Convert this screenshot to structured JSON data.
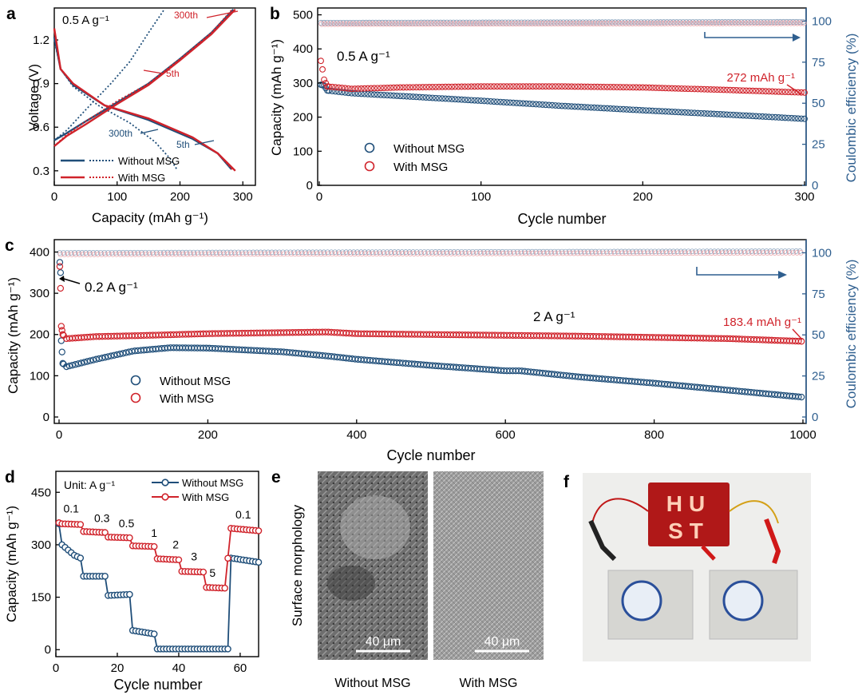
{
  "colors": {
    "blue": "#1f4e79",
    "red": "#d0232b",
    "pink": "#e8a0a6",
    "lightblue": "#8aa3bd",
    "ce_axis": "#2f5f8f",
    "photo_bg": "#eeeeec",
    "led_panel": "#b01818",
    "led_on": "#ffd0b8"
  },
  "panels": {
    "a": {
      "letter": "a",
      "title": "0.5 A g⁻¹",
      "xlabel": "Capacity (mAh g⁻¹)",
      "ylabel": "Voltage (V)",
      "xticks": [
        "0",
        "100",
        "200",
        "300"
      ],
      "yticks": [
        "0.3",
        "0.6",
        "0.9",
        "1.2"
      ],
      "annotations": [
        "300th",
        "5th",
        "300th",
        "5th"
      ],
      "legend": [
        {
          "label": "Without MSG",
          "color": "blue"
        },
        {
          "label": "With MSG",
          "color": "red"
        }
      ]
    },
    "b": {
      "letter": "b",
      "rate": "0.5 A g⁻¹",
      "xlabel": "Cycle number",
      "ylabel": "Capacity (mAh g⁻¹)",
      "ylabel_right": "Coulombic efficiency (%)",
      "xticks": [
        "0",
        "100",
        "200",
        "300"
      ],
      "yticks": [
        "0",
        "100",
        "200",
        "300",
        "400",
        "500"
      ],
      "yticks_right": [
        "0",
        "25",
        "50",
        "75",
        "100"
      ],
      "annotation": "272 mAh g⁻¹",
      "legend": [
        {
          "label": "Without MSG",
          "color": "blue"
        },
        {
          "label": "With MSG",
          "color": "red"
        }
      ]
    },
    "c": {
      "letter": "c",
      "rate_initial": "0.2 A g⁻¹",
      "rate_main": "2 A g⁻¹",
      "xlabel": "Cycle number",
      "ylabel": "Capacity (mAh g⁻¹)",
      "ylabel_right": "Coulombic efficiency (%)",
      "xticks": [
        "0",
        "200",
        "400",
        "600",
        "800",
        "1000"
      ],
      "yticks": [
        "0",
        "100",
        "200",
        "300",
        "400"
      ],
      "yticks_right": [
        "0",
        "25",
        "50",
        "75",
        "100"
      ],
      "annotation": "183.4 mAh g⁻¹",
      "legend": [
        {
          "label": "Without MSG",
          "color": "blue"
        },
        {
          "label": "With MSG",
          "color": "red"
        }
      ]
    },
    "d": {
      "letter": "d",
      "unit": "Unit: A g⁻¹",
      "xlabel": "Cycle number",
      "ylabel": "Capacity (mAh g⁻¹)",
      "xticks": [
        "0",
        "20",
        "40",
        "60"
      ],
      "yticks": [
        "0",
        "150",
        "300",
        "450"
      ],
      "rate_labels": [
        "0.1",
        "0.3",
        "0.5",
        "1",
        "2",
        "3",
        "5",
        "0.1"
      ],
      "legend": [
        {
          "label": "Without MSG",
          "color": "blue"
        },
        {
          "label": "With MSG",
          "color": "red"
        }
      ]
    },
    "e": {
      "letter": "e",
      "ylabel": "Surface morphology",
      "scale": "40 μm",
      "labels": [
        "Without MSG",
        "With MSG"
      ]
    },
    "f": {
      "letter": "f",
      "led_text": "HUST"
    }
  },
  "chart_data": [
    {
      "type": "line",
      "panel": "a",
      "title": "0.5 A g⁻¹",
      "xlabel": "Capacity (mAh g⁻¹)",
      "ylabel": "Voltage (V)",
      "xlim": [
        0,
        320
      ],
      "ylim": [
        0.2,
        1.42
      ],
      "series": [
        {
          "name": "Without MSG 5th discharge",
          "color": "blue",
          "dash": false,
          "points": [
            [
              0,
              1.22
            ],
            [
              10,
              1.0
            ],
            [
              30,
              0.89
            ],
            [
              80,
              0.75
            ],
            [
              150,
              0.65
            ],
            [
              220,
              0.52
            ],
            [
              260,
              0.42
            ],
            [
              282,
              0.31
            ]
          ]
        },
        {
          "name": "Without MSG 5th charge",
          "color": "blue",
          "dash": false,
          "points": [
            [
              0,
              0.51
            ],
            [
              20,
              0.56
            ],
            [
              50,
              0.64
            ],
            [
              100,
              0.77
            ],
            [
              150,
              0.9
            ],
            [
              200,
              1.07
            ],
            [
              250,
              1.25
            ],
            [
              285,
              1.41
            ]
          ]
        },
        {
          "name": "Without MSG 300th discharge",
          "color": "blue",
          "dash": true,
          "points": [
            [
              0,
              1.2
            ],
            [
              10,
              1.0
            ],
            [
              30,
              0.88
            ],
            [
              70,
              0.75
            ],
            [
              120,
              0.63
            ],
            [
              160,
              0.5
            ],
            [
              185,
              0.38
            ],
            [
              195,
              0.31
            ]
          ]
        },
        {
          "name": "Without MSG 300th charge",
          "color": "blue",
          "dash": true,
          "points": [
            [
              0,
              0.51
            ],
            [
              20,
              0.58
            ],
            [
              50,
              0.72
            ],
            [
              90,
              0.9
            ],
            [
              120,
              1.05
            ],
            [
              150,
              1.25
            ],
            [
              175,
              1.41
            ]
          ]
        },
        {
          "name": "With MSG 5th discharge",
          "color": "red",
          "dash": false,
          "points": [
            [
              0,
              1.28
            ],
            [
              10,
              1.0
            ],
            [
              30,
              0.9
            ],
            [
              80,
              0.75
            ],
            [
              150,
              0.66
            ],
            [
              220,
              0.53
            ],
            [
              260,
              0.42
            ],
            [
              288,
              0.3
            ]
          ]
        },
        {
          "name": "With MSG 5th charge",
          "color": "red",
          "dash": false,
          "points": [
            [
              0,
              0.47
            ],
            [
              20,
              0.54
            ],
            [
              50,
              0.62
            ],
            [
              100,
              0.76
            ],
            [
              150,
              0.89
            ],
            [
              200,
              1.06
            ],
            [
              250,
              1.24
            ],
            [
              288,
              1.41
            ]
          ]
        },
        {
          "name": "With MSG 300th discharge",
          "color": "red",
          "dash": true,
          "points": [
            [
              0,
              1.27
            ],
            [
              10,
              1.0
            ],
            [
              30,
              0.9
            ],
            [
              80,
              0.75
            ],
            [
              150,
              0.66
            ],
            [
              220,
              0.53
            ],
            [
              260,
              0.42
            ],
            [
              285,
              0.3
            ]
          ]
        },
        {
          "name": "With MSG 300th charge",
          "color": "red",
          "dash": true,
          "points": [
            [
              0,
              0.47
            ],
            [
              20,
              0.55
            ],
            [
              50,
              0.64
            ],
            [
              100,
              0.78
            ],
            [
              150,
              0.9
            ],
            [
              200,
              1.07
            ],
            [
              250,
              1.25
            ],
            [
              283,
              1.41
            ]
          ]
        }
      ]
    },
    {
      "type": "scatter",
      "panel": "b",
      "xlabel": "Cycle number",
      "ylabel": "Capacity (mAh g⁻¹)",
      "xlim": [
        0,
        300
      ],
      "ylim": [
        0,
        520
      ],
      "ylim_right": [
        0,
        108
      ],
      "series": [
        {
          "name": "Without MSG",
          "color": "blue",
          "points": [
            [
              1,
              295
            ],
            [
              3,
              292
            ],
            [
              5,
              278
            ],
            [
              20,
              270
            ],
            [
              50,
              262
            ],
            [
              100,
              248
            ],
            [
              150,
              233
            ],
            [
              200,
              220
            ],
            [
              250,
              208
            ],
            [
              300,
              195
            ]
          ]
        },
        {
          "name": "With MSG",
          "color": "red",
          "points": [
            [
              1,
              365
            ],
            [
              2,
              340
            ],
            [
              3,
              310
            ],
            [
              5,
              290
            ],
            [
              20,
              283
            ],
            [
              50,
              287
            ],
            [
              100,
              290
            ],
            [
              150,
              290
            ],
            [
              200,
              287
            ],
            [
              250,
              280
            ],
            [
              300,
              272
            ]
          ]
        },
        {
          "name": "Without MSG CE (%)",
          "color": "lightblue",
          "axis": "right",
          "points": [
            [
              1,
              99
            ],
            [
              300,
              99.5
            ]
          ]
        },
        {
          "name": "With MSG CE (%)",
          "color": "pink",
          "axis": "right",
          "points": [
            [
              1,
              99
            ],
            [
              300,
              99.5
            ]
          ]
        }
      ]
    },
    {
      "type": "scatter",
      "panel": "c",
      "xlabel": "Cycle number",
      "ylabel": "Capacity (mAh g⁻¹)",
      "xlim": [
        0,
        1000
      ],
      "ylim": [
        0,
        430
      ],
      "ylim_right": [
        0,
        108
      ],
      "series": [
        {
          "name": "Without MSG",
          "color": "blue",
          "points": [
            [
              1,
              375
            ],
            [
              2,
              350
            ],
            [
              3,
              185
            ],
            [
              5,
              130
            ],
            [
              10,
              122
            ],
            [
              50,
              140
            ],
            [
              100,
              160
            ],
            [
              150,
              168
            ],
            [
              200,
              167
            ],
            [
              300,
              158
            ],
            [
              360,
              148
            ],
            [
              400,
              140
            ],
            [
              500,
              125
            ],
            [
              600,
              112
            ],
            [
              620,
              112
            ],
            [
              700,
              97
            ],
            [
              800,
              82
            ],
            [
              900,
              65
            ],
            [
              1000,
              48
            ]
          ]
        },
        {
          "name": "With MSG",
          "color": "red",
          "points": [
            [
              1,
              365
            ],
            [
              2,
              312
            ],
            [
              3,
              220
            ],
            [
              5,
              200
            ],
            [
              10,
              190
            ],
            [
              50,
              195
            ],
            [
              100,
              197
            ],
            [
              200,
              202
            ],
            [
              280,
              204
            ],
            [
              360,
              206
            ],
            [
              400,
              202
            ],
            [
              500,
              200
            ],
            [
              600,
              198
            ],
            [
              700,
              196
            ],
            [
              800,
              193
            ],
            [
              900,
              190
            ],
            [
              1000,
              183.4
            ]
          ]
        },
        {
          "name": "Without MSG CE (%)",
          "color": "lightblue",
          "axis": "right",
          "points": [
            [
              1,
              100
            ],
            [
              1000,
              101
            ]
          ]
        },
        {
          "name": "With MSG CE (%)",
          "color": "pink",
          "axis": "right",
          "points": [
            [
              1,
              100
            ],
            [
              1000,
              101
            ]
          ]
        }
      ]
    },
    {
      "type": "line",
      "panel": "d",
      "xlabel": "Cycle number",
      "ylabel": "Capacity (mAh g⁻¹)",
      "xlim": [
        0,
        66
      ],
      "ylim": [
        -20,
        510
      ],
      "series": [
        {
          "name": "Without MSG",
          "color": "blue",
          "points": [
            [
              1,
              360
            ],
            [
              2,
              300
            ],
            [
              4,
              285
            ],
            [
              6,
              270
            ],
            [
              8,
              262
            ],
            [
              9,
              210
            ],
            [
              16,
              210
            ],
            [
              17,
              155
            ],
            [
              24,
              158
            ],
            [
              25,
              55
            ],
            [
              32,
              45
            ],
            [
              33,
              2
            ],
            [
              56,
              2
            ],
            [
              57,
              262
            ],
            [
              66,
              250
            ]
          ]
        },
        {
          "name": "With MSG",
          "color": "red",
          "points": [
            [
              1,
              363
            ],
            [
              2,
              360
            ],
            [
              8,
              358
            ],
            [
              9,
              338
            ],
            [
              16,
              335
            ],
            [
              17,
              322
            ],
            [
              24,
              320
            ],
            [
              25,
              297
            ],
            [
              32,
              295
            ],
            [
              33,
              260
            ],
            [
              40,
              257
            ],
            [
              41,
              224
            ],
            [
              48,
              222
            ],
            [
              49,
              178
            ],
            [
              55,
              176
            ],
            [
              57,
              347
            ],
            [
              66,
              340
            ]
          ]
        }
      ]
    }
  ]
}
